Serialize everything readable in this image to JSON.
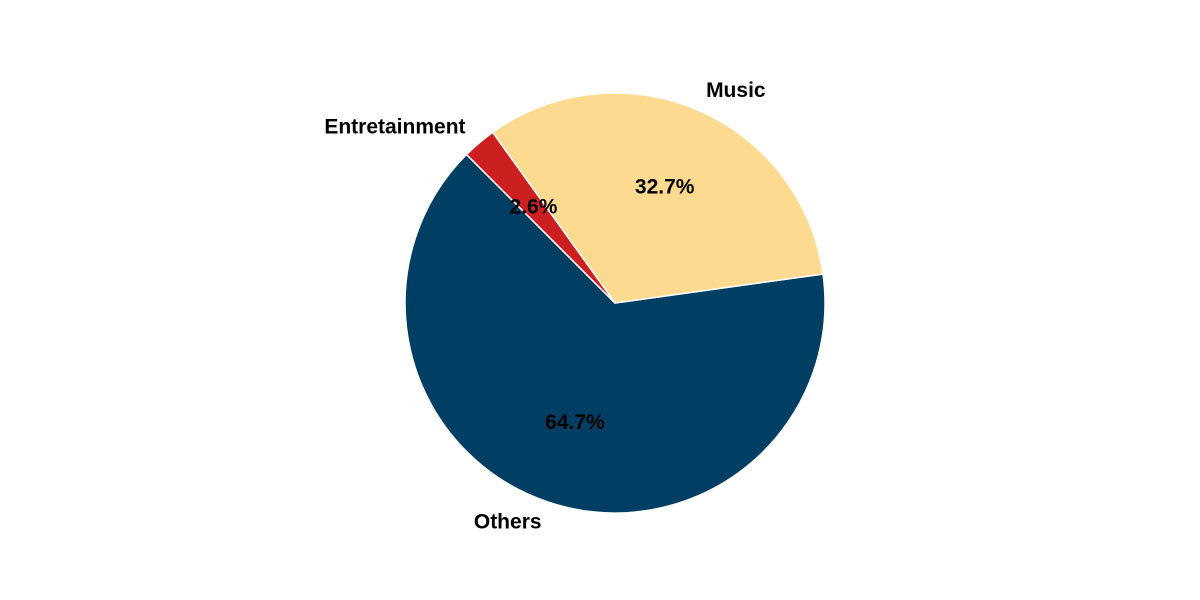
{
  "chart_data": {
    "type": "pie",
    "title": "",
    "start_angle_deg": 135,
    "direction": "counterclockwise",
    "slices": [
      {
        "label": "Others",
        "value": 64.7,
        "display": "64.7%",
        "color": "#003f63"
      },
      {
        "label": "Music",
        "value": 32.7,
        "display": "32.7%",
        "color": "#fed990"
      },
      {
        "label": "Entretainment",
        "value": 2.6,
        "display": "2.6%",
        "color": "#cc1f20"
      }
    ],
    "legend": "none"
  }
}
